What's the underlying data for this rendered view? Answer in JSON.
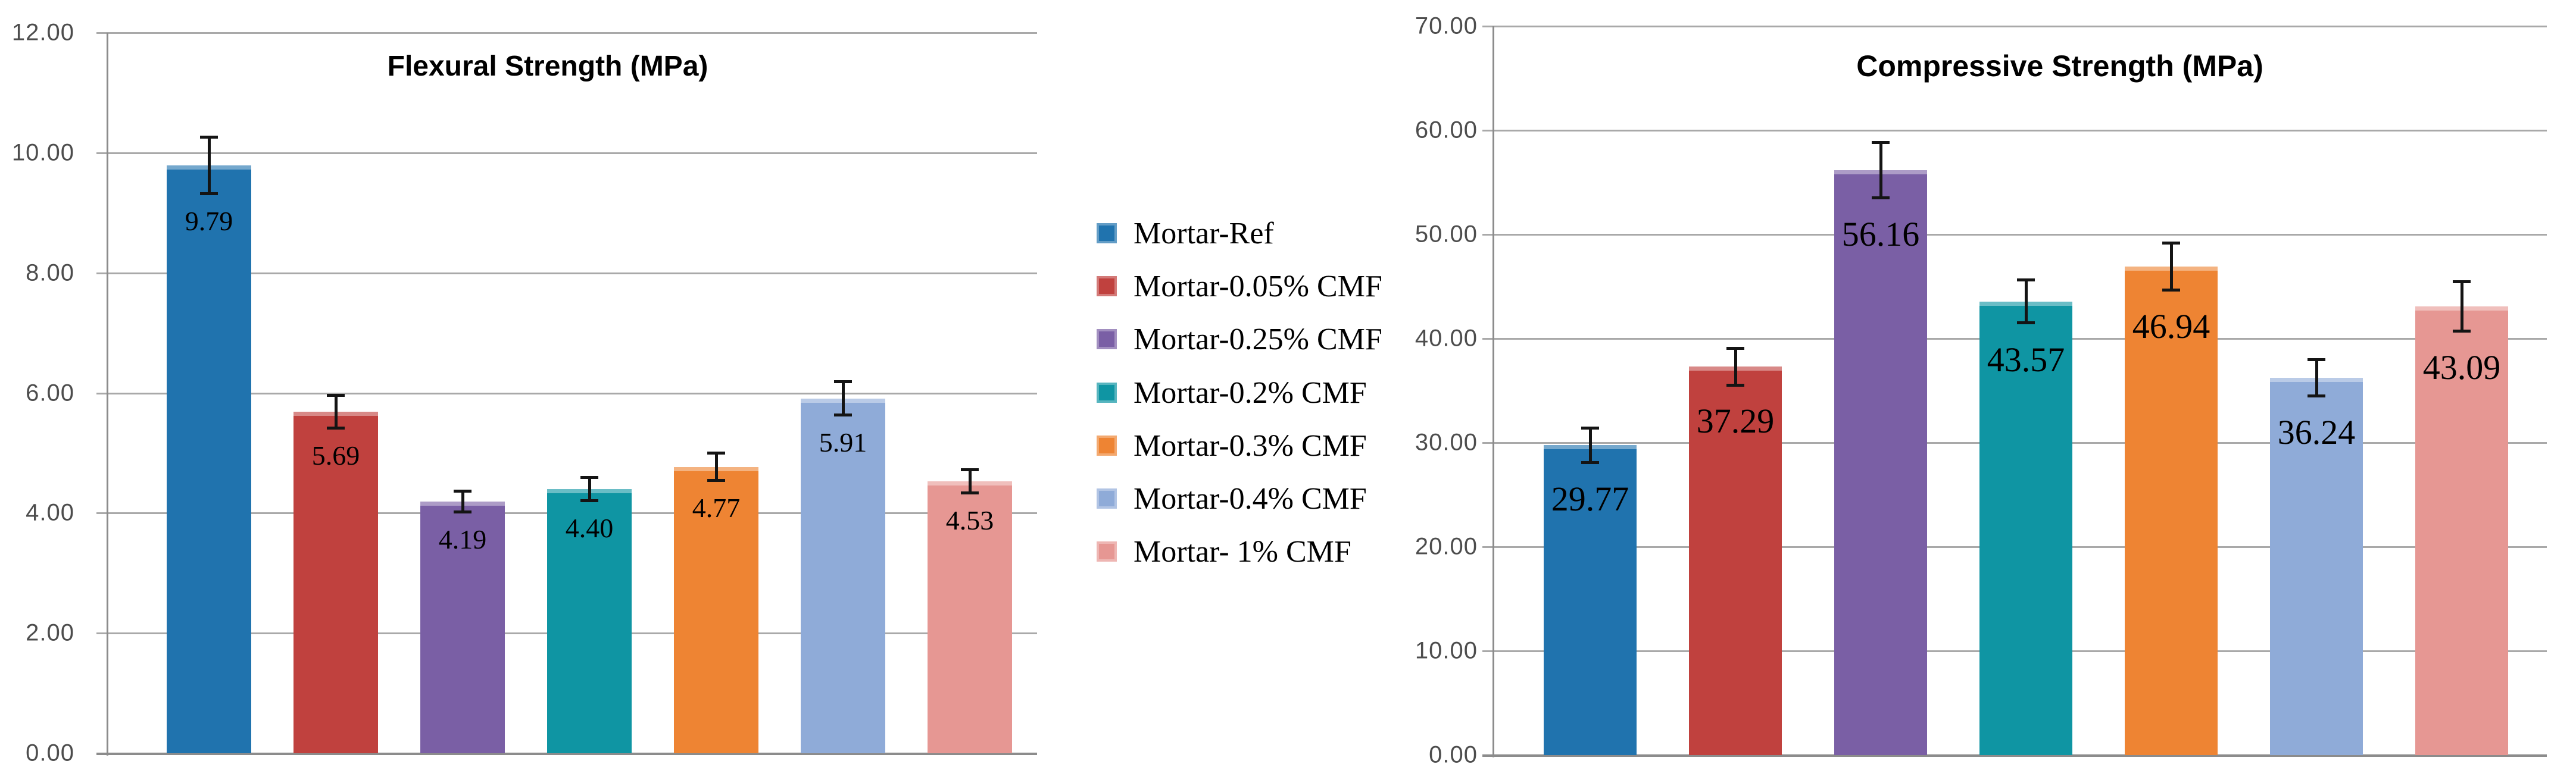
{
  "page": {
    "background": "#ffffff"
  },
  "colors": {
    "gridline": "#a9a9a9",
    "axis": "#8c8c8c",
    "tick_label": "#4d4d4d",
    "error_bar": "#141414",
    "title_text": "#000000",
    "bar_label_text": "#000000",
    "legend_text": "#000000"
  },
  "legend": {
    "items": [
      {
        "label": "Mortar-Ref",
        "color": "#2073AE"
      },
      {
        "label": "Mortar-0.05% CMF",
        "color": "#C0413E"
      },
      {
        "label": "Mortar-0.25% CMF",
        "color": "#7A5FA5"
      },
      {
        "label": "Mortar-0.2% CMF",
        "color": "#0F95A3"
      },
      {
        "label": "Mortar-0.3% CMF",
        "color": "#EE8433"
      },
      {
        "label": "Mortar-0.4% CMF",
        "color": "#8FABD8"
      },
      {
        "label": "Mortar- 1% CMF",
        "color": "#E69793"
      }
    ]
  },
  "chart_data": [
    {
      "type": "bar",
      "title": "Flexural Strength (MPa)",
      "xlabel": "",
      "ylabel": "",
      "ylim": [
        0,
        12
      ],
      "ytick_step": 2,
      "yticks": [
        "0.00",
        "2.00",
        "4.00",
        "6.00",
        "8.00",
        "10.00",
        "12.00"
      ],
      "grid": true,
      "legend_position": "right-of-chart",
      "categories": [
        "Mortar-Ref",
        "Mortar-0.05% CMF",
        "Mortar-0.25% CMF",
        "Mortar-0.2% CMF",
        "Mortar-0.3% CMF",
        "Mortar-0.4% CMF",
        "Mortar- 1% CMF"
      ],
      "values": [
        9.79,
        5.69,
        4.19,
        4.4,
        4.77,
        5.91,
        4.53
      ],
      "labels": [
        "9.79",
        "5.69",
        "4.19",
        "4.40",
        "4.77",
        "5.91",
        "4.53"
      ],
      "errors": [
        0.5,
        0.3,
        0.2,
        0.22,
        0.25,
        0.3,
        0.22
      ]
    },
    {
      "type": "bar",
      "title": "Compressive Strength (MPa)",
      "xlabel": "",
      "ylabel": "",
      "ylim": [
        0,
        70
      ],
      "ytick_step": 10,
      "yticks": [
        "0.00",
        "10.00",
        "20.00",
        "30.00",
        "40.00",
        "50.00",
        "60.00",
        "70.00"
      ],
      "grid": true,
      "legend_position": "left-of-chart",
      "categories": [
        "Mortar-Ref",
        "Mortar-0.05% CMF",
        "Mortar-0.25% CMF",
        "Mortar-0.2% CMF",
        "Mortar-0.3% CMF",
        "Mortar-0.4% CMF",
        "Mortar- 1% CMF"
      ],
      "values": [
        29.77,
        37.29,
        56.16,
        43.57,
        46.94,
        36.24,
        43.09
      ],
      "labels": [
        "29.77",
        "37.29",
        "56.16",
        "43.57",
        "46.94",
        "36.24",
        "43.09"
      ],
      "errors": [
        1.8,
        1.9,
        2.8,
        2.2,
        2.4,
        1.9,
        2.5
      ]
    }
  ]
}
